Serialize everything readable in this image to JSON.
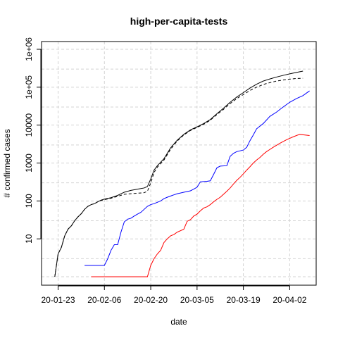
{
  "chart_data": {
    "type": "line",
    "title": "high-per-capita-tests",
    "xlabel": "date",
    "ylabel": "# confirmed cases",
    "y_scale": "log",
    "xlim": [
      "2020-01-18",
      "2020-04-10"
    ],
    "ylim": [
      0.6,
      1600000
    ],
    "grid": true,
    "x_ticks": [
      {
        "label": "20-01-23",
        "date": "2020-01-23"
      },
      {
        "label": "20-02-06",
        "date": "2020-02-06"
      },
      {
        "label": "20-02-20",
        "date": "2020-02-20"
      },
      {
        "label": "20-03-05",
        "date": "2020-03-05"
      },
      {
        "label": "20-03-19",
        "date": "2020-03-19"
      },
      {
        "label": "20-04-02",
        "date": "2020-04-02"
      }
    ],
    "y_ticks": [
      {
        "label": "10",
        "value": 10
      },
      {
        "label": "100",
        "value": 100
      },
      {
        "label": "1000",
        "value": 1000
      },
      {
        "label": "10000",
        "value": 10000
      },
      {
        "label": "1e+05",
        "value": 100000
      },
      {
        "label": "1e+06",
        "value": 1000000
      }
    ],
    "series": [
      {
        "color": "#000000",
        "dash": "solid",
        "points": [
          [
            "2020-01-22",
            1
          ],
          [
            "2020-01-23",
            4
          ],
          [
            "2020-01-24",
            6
          ],
          [
            "2020-01-25",
            12
          ],
          [
            "2020-01-26",
            18
          ],
          [
            "2020-01-27",
            22
          ],
          [
            "2020-01-28",
            30
          ],
          [
            "2020-01-29",
            38
          ],
          [
            "2020-01-30",
            46
          ],
          [
            "2020-01-31",
            60
          ],
          [
            "2020-02-01",
            72
          ],
          [
            "2020-02-02",
            80
          ],
          [
            "2020-02-03",
            85
          ],
          [
            "2020-02-04",
            95
          ],
          [
            "2020-02-05",
            105
          ],
          [
            "2020-02-06",
            112
          ],
          [
            "2020-02-08",
            122
          ],
          [
            "2020-02-10",
            140
          ],
          [
            "2020-02-12",
            170
          ],
          [
            "2020-02-14",
            190
          ],
          [
            "2020-02-16",
            205
          ],
          [
            "2020-02-18",
            220
          ],
          [
            "2020-02-19",
            240
          ],
          [
            "2020-02-20",
            380
          ],
          [
            "2020-02-21",
            650
          ],
          [
            "2020-02-22",
            850
          ],
          [
            "2020-02-24",
            1300
          ],
          [
            "2020-02-26",
            2500
          ],
          [
            "2020-02-28",
            4000
          ],
          [
            "2020-03-01",
            5700
          ],
          [
            "2020-03-03",
            7500
          ],
          [
            "2020-03-05",
            9000
          ],
          [
            "2020-03-07",
            11000
          ],
          [
            "2020-03-09",
            14000
          ],
          [
            "2020-03-11",
            20000
          ],
          [
            "2020-03-13",
            28000
          ],
          [
            "2020-03-15",
            40000
          ],
          [
            "2020-03-17",
            55000
          ],
          [
            "2020-03-19",
            72000
          ],
          [
            "2020-03-21",
            95000
          ],
          [
            "2020-03-23",
            120000
          ],
          [
            "2020-03-25",
            145000
          ],
          [
            "2020-03-27",
            165000
          ],
          [
            "2020-03-29",
            185000
          ],
          [
            "2020-03-31",
            205000
          ],
          [
            "2020-04-02",
            225000
          ],
          [
            "2020-04-04",
            245000
          ],
          [
            "2020-04-06",
            265000
          ]
        ]
      },
      {
        "color": "#000000",
        "dash": "dashed",
        "points": [
          [
            "2020-01-22",
            1
          ],
          [
            "2020-01-23",
            4
          ],
          [
            "2020-01-24",
            6
          ],
          [
            "2020-01-25",
            12
          ],
          [
            "2020-01-26",
            18
          ],
          [
            "2020-01-27",
            22
          ],
          [
            "2020-01-28",
            30
          ],
          [
            "2020-01-29",
            38
          ],
          [
            "2020-01-30",
            46
          ],
          [
            "2020-01-31",
            60
          ],
          [
            "2020-02-01",
            72
          ],
          [
            "2020-02-02",
            80
          ],
          [
            "2020-02-03",
            85
          ],
          [
            "2020-02-04",
            95
          ],
          [
            "2020-02-05",
            103
          ],
          [
            "2020-02-06",
            108
          ],
          [
            "2020-02-08",
            118
          ],
          [
            "2020-02-10",
            132
          ],
          [
            "2020-02-12",
            150
          ],
          [
            "2020-02-14",
            155
          ],
          [
            "2020-02-16",
            160
          ],
          [
            "2020-02-18",
            165
          ],
          [
            "2020-02-19",
            180
          ],
          [
            "2020-02-20",
            300
          ],
          [
            "2020-02-21",
            560
          ],
          [
            "2020-02-22",
            780
          ],
          [
            "2020-02-24",
            1200
          ],
          [
            "2020-02-26",
            2300
          ],
          [
            "2020-02-28",
            3800
          ],
          [
            "2020-03-01",
            5500
          ],
          [
            "2020-03-03",
            7200
          ],
          [
            "2020-03-05",
            8700
          ],
          [
            "2020-03-07",
            10500
          ],
          [
            "2020-03-09",
            13500
          ],
          [
            "2020-03-11",
            19000
          ],
          [
            "2020-03-13",
            26000
          ],
          [
            "2020-03-15",
            37000
          ],
          [
            "2020-03-17",
            50000
          ],
          [
            "2020-03-19",
            64000
          ],
          [
            "2020-03-21",
            82000
          ],
          [
            "2020-03-23",
            100000
          ],
          [
            "2020-03-25",
            118000
          ],
          [
            "2020-03-27",
            132000
          ],
          [
            "2020-03-29",
            145000
          ],
          [
            "2020-03-31",
            155000
          ],
          [
            "2020-04-02",
            163000
          ],
          [
            "2020-04-04",
            170000
          ],
          [
            "2020-04-06",
            172000
          ]
        ]
      },
      {
        "color": "#0000ff",
        "dash": "solid",
        "points": [
          [
            "2020-01-31",
            2
          ],
          [
            "2020-02-06",
            2
          ],
          [
            "2020-02-07",
            3
          ],
          [
            "2020-02-08",
            5
          ],
          [
            "2020-02-09",
            7
          ],
          [
            "2020-02-10",
            7
          ],
          [
            "2020-02-11",
            15
          ],
          [
            "2020-02-12",
            28
          ],
          [
            "2020-02-13",
            33
          ],
          [
            "2020-02-14",
            35
          ],
          [
            "2020-02-15",
            40
          ],
          [
            "2020-02-16",
            45
          ],
          [
            "2020-02-17",
            50
          ],
          [
            "2020-02-18",
            60
          ],
          [
            "2020-02-19",
            72
          ],
          [
            "2020-02-20",
            80
          ],
          [
            "2020-02-21",
            85
          ],
          [
            "2020-02-22",
            92
          ],
          [
            "2020-02-23",
            100
          ],
          [
            "2020-02-24",
            115
          ],
          [
            "2020-02-25",
            125
          ],
          [
            "2020-02-26",
            135
          ],
          [
            "2020-02-27",
            145
          ],
          [
            "2020-02-28",
            155
          ],
          [
            "2020-03-01",
            170
          ],
          [
            "2020-03-03",
            185
          ],
          [
            "2020-03-04",
            205
          ],
          [
            "2020-03-05",
            230
          ],
          [
            "2020-03-06",
            320
          ],
          [
            "2020-03-08",
            330
          ],
          [
            "2020-03-09",
            340
          ],
          [
            "2020-03-10",
            500
          ],
          [
            "2020-03-11",
            750
          ],
          [
            "2020-03-12",
            830
          ],
          [
            "2020-03-14",
            850
          ],
          [
            "2020-03-15",
            1500
          ],
          [
            "2020-03-16",
            1800
          ],
          [
            "2020-03-17",
            2000
          ],
          [
            "2020-03-19",
            2200
          ],
          [
            "2020-03-20",
            2600
          ],
          [
            "2020-03-21",
            3900
          ],
          [
            "2020-03-22",
            5500
          ],
          [
            "2020-03-23",
            8000
          ],
          [
            "2020-03-25",
            11000
          ],
          [
            "2020-03-27",
            17000
          ],
          [
            "2020-03-29",
            22000
          ],
          [
            "2020-03-31",
            30000
          ],
          [
            "2020-04-02",
            40000
          ],
          [
            "2020-04-04",
            50000
          ],
          [
            "2020-04-06",
            60000
          ],
          [
            "2020-04-08",
            80000
          ]
        ]
      },
      {
        "color": "#ff0000",
        "dash": "solid",
        "points": [
          [
            "2020-02-02",
            1
          ],
          [
            "2020-02-19",
            1
          ],
          [
            "2020-02-20",
            2
          ],
          [
            "2020-02-21",
            3
          ],
          [
            "2020-02-22",
            4
          ],
          [
            "2020-02-23",
            5
          ],
          [
            "2020-02-24",
            8
          ],
          [
            "2020-02-25",
            10
          ],
          [
            "2020-02-26",
            12
          ],
          [
            "2020-02-27",
            13
          ],
          [
            "2020-02-28",
            15
          ],
          [
            "2020-03-01",
            18
          ],
          [
            "2020-03-02",
            29
          ],
          [
            "2020-03-03",
            32
          ],
          [
            "2020-03-04",
            40
          ],
          [
            "2020-03-05",
            45
          ],
          [
            "2020-03-06",
            55
          ],
          [
            "2020-03-07",
            65
          ],
          [
            "2020-03-08",
            70
          ],
          [
            "2020-03-09",
            80
          ],
          [
            "2020-03-10",
            95
          ],
          [
            "2020-03-11",
            110
          ],
          [
            "2020-03-12",
            125
          ],
          [
            "2020-03-13",
            150
          ],
          [
            "2020-03-14",
            180
          ],
          [
            "2020-03-15",
            220
          ],
          [
            "2020-03-16",
            280
          ],
          [
            "2020-03-17",
            350
          ],
          [
            "2020-03-18",
            420
          ],
          [
            "2020-03-19",
            520
          ],
          [
            "2020-03-20",
            650
          ],
          [
            "2020-03-21",
            800
          ],
          [
            "2020-03-22",
            1000
          ],
          [
            "2020-03-23",
            1200
          ],
          [
            "2020-03-24",
            1400
          ],
          [
            "2020-03-25",
            1700
          ],
          [
            "2020-03-26",
            2000
          ],
          [
            "2020-03-28",
            2600
          ],
          [
            "2020-03-30",
            3300
          ],
          [
            "2020-04-01",
            4100
          ],
          [
            "2020-04-03",
            4900
          ],
          [
            "2020-04-05",
            5700
          ],
          [
            "2020-04-08",
            5300
          ]
        ]
      }
    ]
  }
}
